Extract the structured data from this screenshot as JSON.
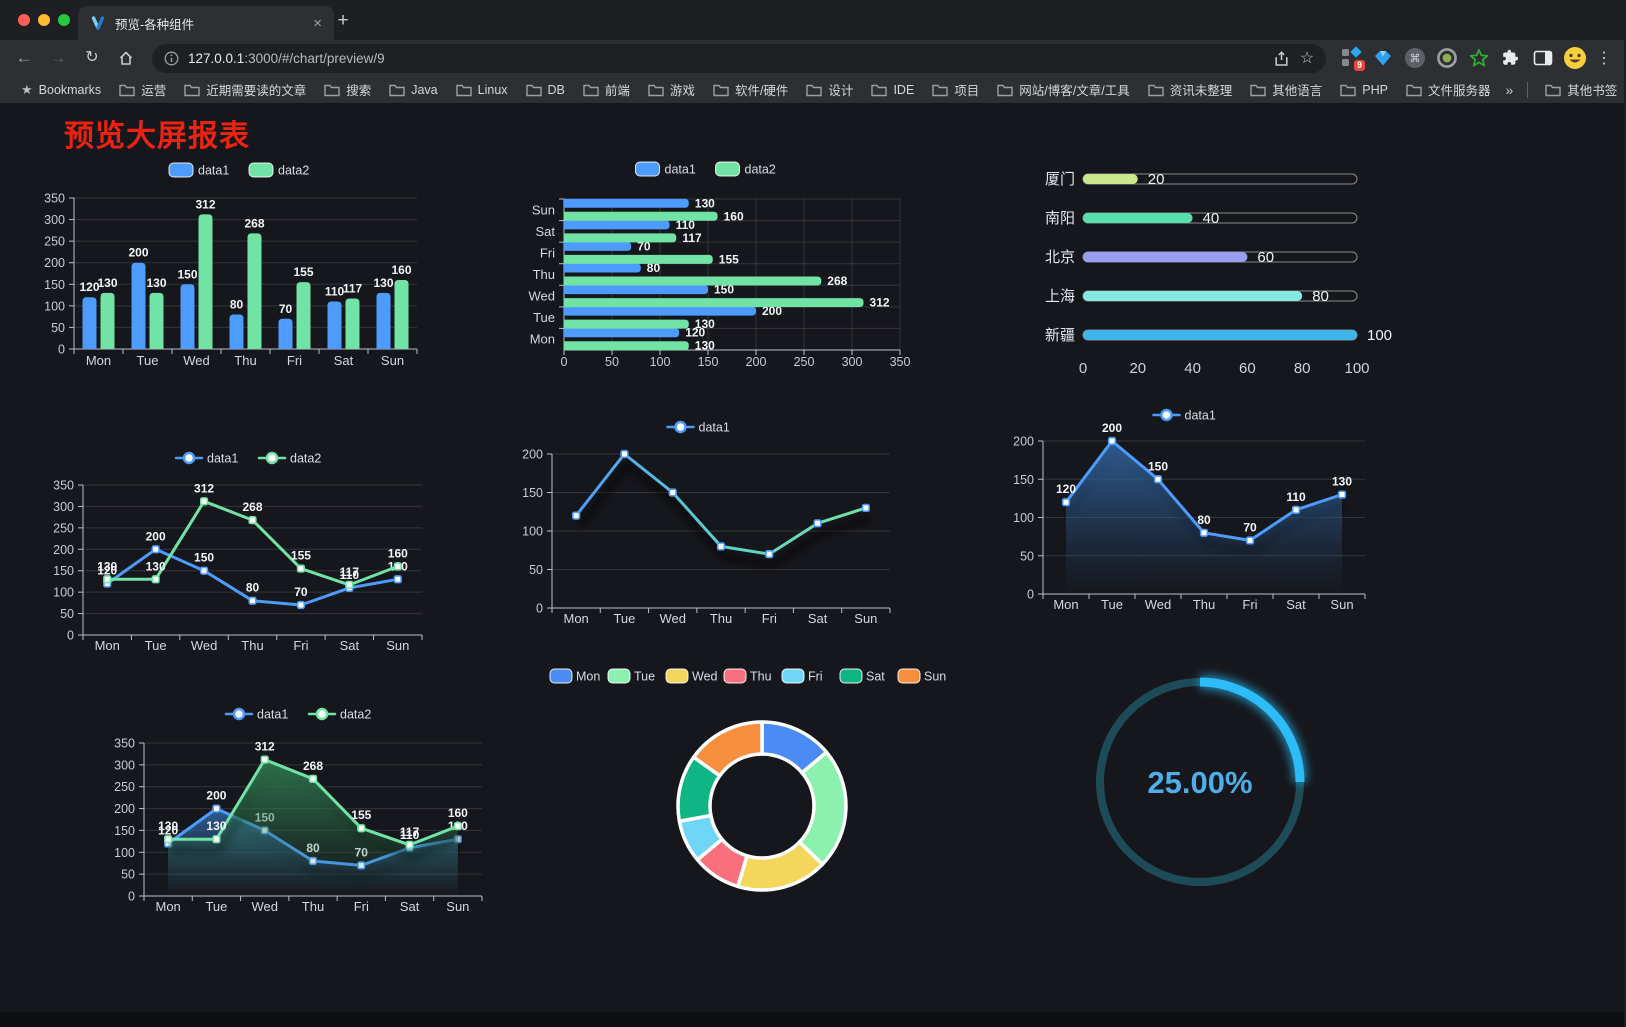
{
  "browser": {
    "tab_title": "预览-各种组件",
    "close_glyph": "×",
    "new_tab_glyph": "+",
    "nav": {
      "back": "←",
      "forward": "→",
      "reload": "↻"
    },
    "url": {
      "host": "127.0.0.1",
      "path": ":3000/#/chart/preview/9"
    },
    "extension_badge": "9",
    "bookmarks_label": "Bookmarks",
    "bookmarks": [
      "运营",
      "近期需要读的文章",
      "搜索",
      "Java",
      "Linux",
      "DB",
      "前端",
      "游戏",
      "软件/硬件",
      "设计",
      "IDE",
      "项目",
      "网站/博客/文章/工具",
      "资讯未整理",
      "其他语言",
      "PHP",
      "文件服务器"
    ],
    "overflow_glyph": "»",
    "other_bookmarks": "其他书签",
    "menu_glyph": "⋮"
  },
  "page": {
    "title": "预览大屏报表",
    "title_color": "#eb2310",
    "background": "#16171c"
  },
  "style": {
    "axis": "#b9bfca",
    "grid": "rgba(255,255,255,0.13)",
    "tick_text": "#c6cbd4",
    "category_text": "#d3d7de",
    "value_text": "#f3f5f8",
    "legend_text": "#d9dce2"
  },
  "chart_data": [
    {
      "id": "bar-vertical",
      "type": "bar",
      "categories": [
        "Mon",
        "Tue",
        "Wed",
        "Thu",
        "Fri",
        "Sat",
        "Sun"
      ],
      "series": [
        {
          "name": "data1",
          "color": "#4C9BFD",
          "values": [
            120,
            200,
            150,
            80,
            70,
            110,
            130
          ]
        },
        {
          "name": "data2",
          "color": "#71E3A5",
          "values": [
            130,
            130,
            312,
            268,
            155,
            117,
            160
          ]
        }
      ],
      "ylim": [
        0,
        350
      ],
      "ytick": 50,
      "legend_position": "top",
      "grid": true
    },
    {
      "id": "bar-horizontal",
      "type": "hbar",
      "categories": [
        "Mon",
        "Tue",
        "Wed",
        "Thu",
        "Fri",
        "Sat",
        "Sun"
      ],
      "series": [
        {
          "name": "data1",
          "color": "#4C9BFD",
          "values": [
            120,
            200,
            150,
            80,
            70,
            110,
            130
          ]
        },
        {
          "name": "data2",
          "color": "#71E3A5",
          "values": [
            130,
            130,
            312,
            268,
            155,
            117,
            160
          ]
        }
      ],
      "xlim": [
        0,
        350
      ],
      "xtick": 50,
      "legend_position": "top",
      "grid": true
    },
    {
      "id": "city-progress",
      "type": "progress",
      "max": 100,
      "xticks": [
        0,
        20,
        40,
        60,
        80,
        100
      ],
      "items": [
        {
          "label": "厦门",
          "value": 20,
          "color": "#C8E88A"
        },
        {
          "label": "南阳",
          "value": 40,
          "color": "#57E0AC"
        },
        {
          "label": "北京",
          "value": 60,
          "color": "#989EF0"
        },
        {
          "label": "上海",
          "value": 80,
          "color": "#87E9E3"
        },
        {
          "label": "新疆",
          "value": 100,
          "color": "#3FB4E8"
        }
      ]
    },
    {
      "id": "line-basic",
      "type": "line",
      "labels": true,
      "categories": [
        "Mon",
        "Tue",
        "Wed",
        "Thu",
        "Fri",
        "Sat",
        "Sun"
      ],
      "series": [
        {
          "name": "data1",
          "color": "#4C9BFD",
          "values": [
            120,
            200,
            150,
            80,
            70,
            110,
            130
          ]
        },
        {
          "name": "data2",
          "color": "#71E3A5",
          "values": [
            130,
            130,
            312,
            268,
            155,
            117,
            160
          ]
        }
      ],
      "ylim": [
        0,
        350
      ],
      "ytick": 50,
      "legend_position": "top",
      "grid": true
    },
    {
      "id": "line-gradient",
      "type": "line",
      "labels": false,
      "shadow": true,
      "gradient": [
        "#4C9BFD",
        "#5ED0C8",
        "#71E3A5"
      ],
      "categories": [
        "Mon",
        "Tue",
        "Wed",
        "Thu",
        "Fri",
        "Sat",
        "Sun"
      ],
      "series": [
        {
          "name": "data1",
          "color": "#4C9BFD",
          "values": [
            120,
            200,
            150,
            80,
            70,
            110,
            130
          ]
        }
      ],
      "ylim": [
        0,
        200
      ],
      "ytick": 50,
      "legend_position": "top",
      "grid": true
    },
    {
      "id": "area-single",
      "type": "line",
      "labels": true,
      "categories": [
        "Mon",
        "Tue",
        "Wed",
        "Thu",
        "Fri",
        "Sat",
        "Sun"
      ],
      "series": [
        {
          "name": "data1",
          "color": "#4C9BFD",
          "area": "#30619B",
          "values": [
            120,
            200,
            150,
            80,
            70,
            110,
            130
          ]
        }
      ],
      "ylim": [
        0,
        200
      ],
      "ytick": 50,
      "legend_position": "top",
      "grid": true
    },
    {
      "id": "area-double",
      "type": "line",
      "labels": true,
      "categories": [
        "Mon",
        "Tue",
        "Wed",
        "Thu",
        "Fri",
        "Sat",
        "Sun"
      ],
      "series": [
        {
          "name": "data1",
          "color": "#4C9BFD",
          "area": "#30619B",
          "values": [
            120,
            200,
            150,
            80,
            70,
            110,
            130
          ]
        },
        {
          "name": "data2",
          "color": "#71E3A5",
          "area": "#2E7A50",
          "values": [
            130,
            130,
            312,
            268,
            155,
            117,
            160
          ]
        }
      ],
      "ylim": [
        0,
        350
      ],
      "ytick": 50,
      "legend_position": "top",
      "grid": true
    },
    {
      "id": "donut",
      "type": "pie",
      "categories": [
        "Mon",
        "Tue",
        "Wed",
        "Thu",
        "Fri",
        "Sat",
        "Sun"
      ],
      "values": [
        120,
        200,
        150,
        80,
        70,
        110,
        130
      ],
      "colors": [
        "#4B8BF4",
        "#8CF0AE",
        "#F5D65C",
        "#F8707E",
        "#70D6F5",
        "#10B584",
        "#F78F3F"
      ],
      "border_color": "#ffffff",
      "legend_position": "top"
    },
    {
      "id": "gauge",
      "type": "gauge",
      "value": 25,
      "max": 100,
      "text": "25.00%",
      "color": "#2CBCF8",
      "track": "#1D4B57",
      "text_color": "#4DAFE9"
    }
  ]
}
